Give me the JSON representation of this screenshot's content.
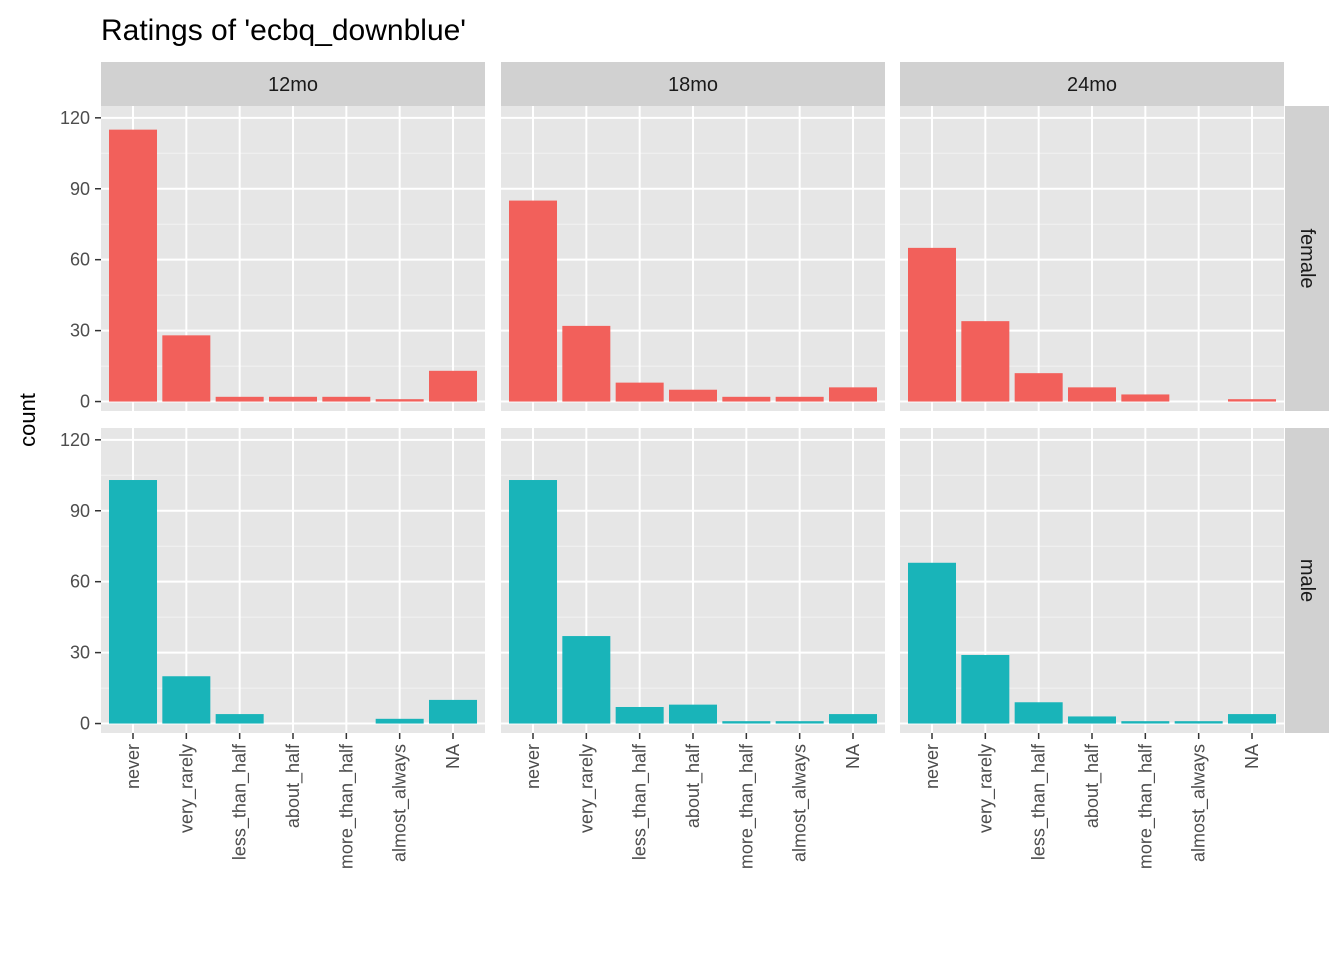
{
  "chart_data": {
    "type": "bar",
    "title": "Ratings of 'ecbq_downblue'",
    "xlabel": "",
    "ylabel": "count",
    "ylim": [
      -4,
      125
    ],
    "yticks": [
      0,
      30,
      60,
      90,
      120
    ],
    "grid": true,
    "legend": "none",
    "categories": [
      "never",
      "very_rarely",
      "less_than_half",
      "about_half",
      "more_than_half",
      "almost_always",
      "NA"
    ],
    "facet_columns": [
      "12mo",
      "18mo",
      "24mo"
    ],
    "facet_rows": [
      "female",
      "male"
    ],
    "colors": {
      "female": "#F8766D",
      "male": "#00BFC4"
    },
    "bar_colors": {
      "female": "#F2605B",
      "male": "#19B4B9"
    },
    "panel_background": "#E6E6E6",
    "strip_background": "#D1D1D1",
    "series": [
      {
        "row": "female",
        "col": "12mo",
        "values": [
          115,
          28,
          2,
          2,
          2,
          1,
          13
        ]
      },
      {
        "row": "female",
        "col": "18mo",
        "values": [
          85,
          32,
          8,
          5,
          2,
          2,
          6
        ]
      },
      {
        "row": "female",
        "col": "24mo",
        "values": [
          65,
          34,
          12,
          6,
          3,
          0,
          1
        ]
      },
      {
        "row": "male",
        "col": "12mo",
        "values": [
          103,
          20,
          4,
          0,
          0,
          2,
          10
        ]
      },
      {
        "row": "male",
        "col": "18mo",
        "values": [
          103,
          37,
          7,
          8,
          1,
          1,
          4
        ]
      },
      {
        "row": "male",
        "col": "24mo",
        "values": [
          68,
          29,
          9,
          3,
          1,
          1,
          4
        ]
      }
    ]
  }
}
